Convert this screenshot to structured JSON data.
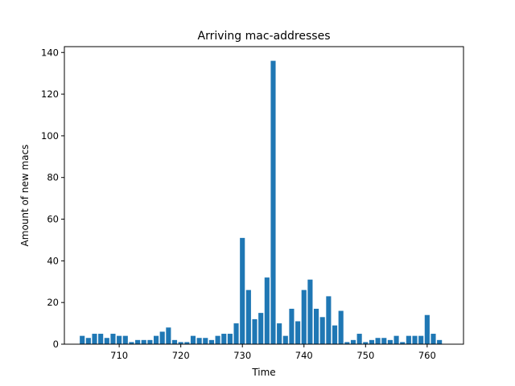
{
  "chart_data": {
    "type": "bar",
    "title": "Arriving mac-addresses",
    "xlabel": "Time",
    "ylabel": "Amount of new macs",
    "xlim": [
      701.1,
      765.9
    ],
    "ylim": [
      0,
      142.8
    ],
    "xticks": [
      710,
      720,
      730,
      740,
      750,
      760
    ],
    "yticks": [
      0,
      20,
      40,
      60,
      80,
      100,
      120,
      140
    ],
    "bar_color": "#1f77b4",
    "grid": false,
    "x": [
      704,
      705,
      706,
      707,
      708,
      709,
      710,
      711,
      712,
      713,
      714,
      715,
      716,
      717,
      718,
      719,
      720,
      721,
      722,
      723,
      724,
      725,
      726,
      727,
      728,
      729,
      730,
      731,
      732,
      733,
      734,
      735,
      736,
      737,
      738,
      739,
      740,
      741,
      742,
      743,
      744,
      745,
      746,
      747,
      748,
      749,
      750,
      751,
      752,
      753,
      754,
      755,
      756,
      757,
      758,
      759,
      760,
      761,
      762
    ],
    "values": [
      4,
      3,
      5,
      5,
      3,
      5,
      4,
      4,
      1,
      2,
      2,
      2,
      4,
      6,
      8,
      2,
      1,
      1,
      4,
      3,
      3,
      2,
      4,
      5,
      5,
      10,
      51,
      26,
      12,
      15,
      32,
      136,
      10,
      4,
      17,
      11,
      26,
      31,
      17,
      13,
      23,
      9,
      16,
      1,
      2,
      5,
      1,
      2,
      3,
      3,
      2,
      4,
      1,
      4,
      4,
      4,
      14,
      5,
      2
    ]
  }
}
